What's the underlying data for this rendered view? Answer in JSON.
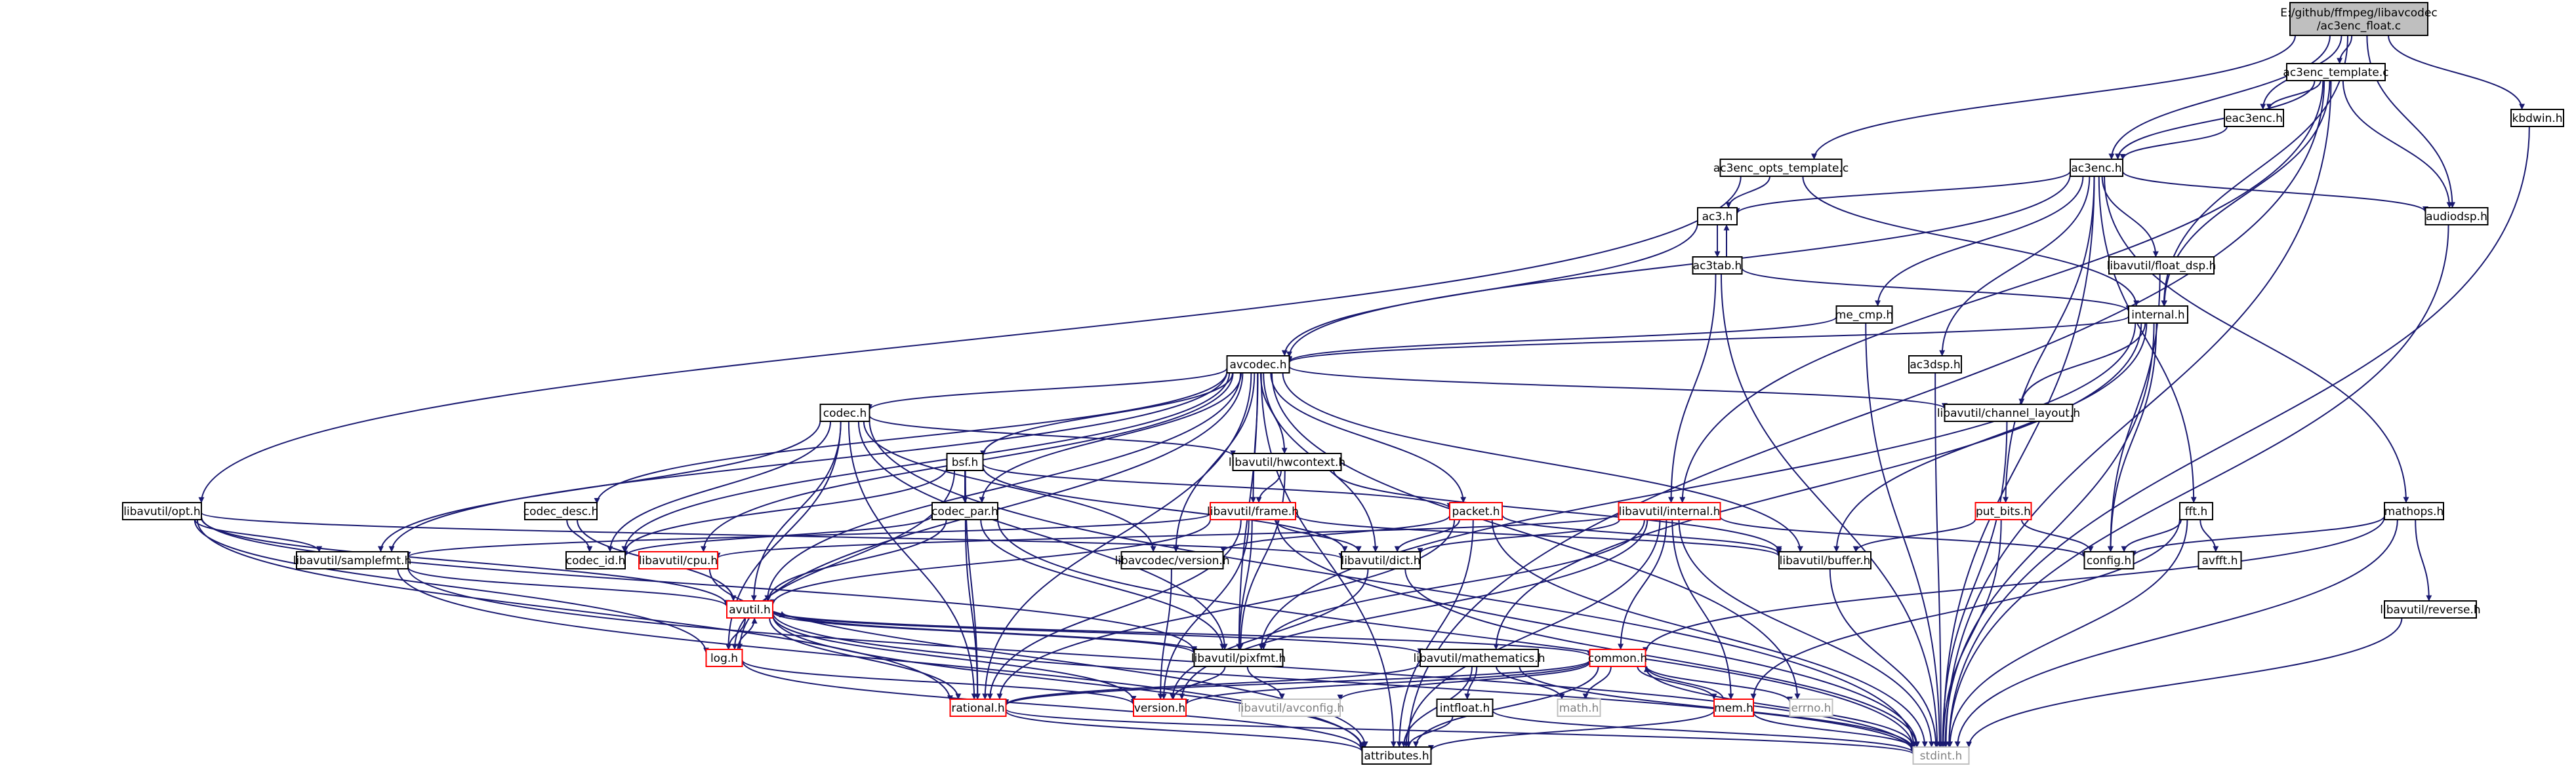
{
  "nodes": [
    {
      "id": "root",
      "label": [
        "E:/github/ffmpeg/libavcodec",
        "/ac3enc_float.c"
      ],
      "kind": "root"
    },
    {
      "id": "ac3enc_template.c",
      "label": [
        "ac3enc_template.c"
      ],
      "kind": "normal"
    },
    {
      "id": "eac3enc.h",
      "label": [
        "eac3enc.h"
      ],
      "kind": "normal"
    },
    {
      "id": "kbdwin.h",
      "label": [
        "kbdwin.h"
      ],
      "kind": "normal"
    },
    {
      "id": "ac3enc_opts_template.c",
      "label": [
        "ac3enc_opts_template.c"
      ],
      "kind": "normal"
    },
    {
      "id": "ac3enc.h",
      "label": [
        "ac3enc.h"
      ],
      "kind": "normal"
    },
    {
      "id": "audiodsp.h",
      "label": [
        "audiodsp.h"
      ],
      "kind": "normal"
    },
    {
      "id": "ac3.h",
      "label": [
        "ac3.h"
      ],
      "kind": "normal"
    },
    {
      "id": "ac3tab.h",
      "label": [
        "ac3tab.h"
      ],
      "kind": "normal"
    },
    {
      "id": "libavutil/float_dsp.h",
      "label": [
        "libavutil/float_dsp.h"
      ],
      "kind": "normal"
    },
    {
      "id": "me_cmp.h",
      "label": [
        "me_cmp.h"
      ],
      "kind": "normal"
    },
    {
      "id": "internal.h",
      "label": [
        "internal.h"
      ],
      "kind": "normal"
    },
    {
      "id": "avcodec.h",
      "label": [
        "avcodec.h"
      ],
      "kind": "normal"
    },
    {
      "id": "ac3dsp.h",
      "label": [
        "ac3dsp.h"
      ],
      "kind": "normal"
    },
    {
      "id": "codec.h",
      "label": [
        "codec.h"
      ],
      "kind": "normal"
    },
    {
      "id": "libavutil/channel_layout.h",
      "label": [
        "libavutil/channel_layout.h"
      ],
      "kind": "normal"
    },
    {
      "id": "bsf.h",
      "label": [
        "bsf.h"
      ],
      "kind": "normal"
    },
    {
      "id": "libavutil/hwcontext.h",
      "label": [
        "libavutil/hwcontext.h"
      ],
      "kind": "normal"
    },
    {
      "id": "libavutil/opt.h",
      "label": [
        "libavutil/opt.h"
      ],
      "kind": "normal"
    },
    {
      "id": "codec_desc.h",
      "label": [
        "codec_desc.h"
      ],
      "kind": "normal"
    },
    {
      "id": "codec_par.h",
      "label": [
        "codec_par.h"
      ],
      "kind": "normal"
    },
    {
      "id": "libavutil/frame.h",
      "label": [
        "libavutil/frame.h"
      ],
      "kind": "red"
    },
    {
      "id": "packet.h",
      "label": [
        "packet.h"
      ],
      "kind": "red"
    },
    {
      "id": "libavutil/internal.h",
      "label": [
        "libavutil/internal.h"
      ],
      "kind": "red"
    },
    {
      "id": "put_bits.h",
      "label": [
        "put_bits.h"
      ],
      "kind": "red"
    },
    {
      "id": "fft.h",
      "label": [
        "fft.h"
      ],
      "kind": "normal"
    },
    {
      "id": "mathops.h",
      "label": [
        "mathops.h"
      ],
      "kind": "normal"
    },
    {
      "id": "libavutil/samplefmt.h",
      "label": [
        "libavutil/samplefmt.h"
      ],
      "kind": "normal"
    },
    {
      "id": "codec_id.h",
      "label": [
        "codec_id.h"
      ],
      "kind": "normal"
    },
    {
      "id": "libavutil/cpu.h",
      "label": [
        "libavutil/cpu.h"
      ],
      "kind": "red"
    },
    {
      "id": "libavcodec/version.h",
      "label": [
        "libavcodec/version.h"
      ],
      "kind": "normal"
    },
    {
      "id": "libavutil/dict.h",
      "label": [
        "libavutil/dict.h"
      ],
      "kind": "normal"
    },
    {
      "id": "libavutil/buffer.h",
      "label": [
        "libavutil/buffer.h"
      ],
      "kind": "normal"
    },
    {
      "id": "config.h",
      "label": [
        "config.h"
      ],
      "kind": "normal"
    },
    {
      "id": "avfft.h",
      "label": [
        "avfft.h"
      ],
      "kind": "normal"
    },
    {
      "id": "avutil.h",
      "label": [
        "avutil.h"
      ],
      "kind": "red"
    },
    {
      "id": "libavutil/reverse.h",
      "label": [
        "libavutil/reverse.h"
      ],
      "kind": "normal"
    },
    {
      "id": "log.h",
      "label": [
        "log.h"
      ],
      "kind": "red"
    },
    {
      "id": "libavutil/pixfmt.h",
      "label": [
        "libavutil/pixfmt.h"
      ],
      "kind": "normal"
    },
    {
      "id": "libavutil/mathematics.h",
      "label": [
        "libavutil/mathematics.h"
      ],
      "kind": "normal"
    },
    {
      "id": "common.h",
      "label": [
        "common.h"
      ],
      "kind": "red"
    },
    {
      "id": "rational.h",
      "label": [
        "rational.h"
      ],
      "kind": "red"
    },
    {
      "id": "version.h",
      "label": [
        "version.h"
      ],
      "kind": "red"
    },
    {
      "id": "libavutil/avconfig.h",
      "label": [
        "libavutil/avconfig.h"
      ],
      "kind": "gray"
    },
    {
      "id": "intfloat.h",
      "label": [
        "intfloat.h"
      ],
      "kind": "normal"
    },
    {
      "id": "math.h",
      "label": [
        "math.h"
      ],
      "kind": "gray"
    },
    {
      "id": "mem.h",
      "label": [
        "mem.h"
      ],
      "kind": "red"
    },
    {
      "id": "errno.h",
      "label": [
        "errno.h"
      ],
      "kind": "gray"
    },
    {
      "id": "attributes.h",
      "label": [
        "attributes.h"
      ],
      "kind": "normal"
    },
    {
      "id": "stdint.h",
      "label": [
        "stdint.h"
      ],
      "kind": "gray"
    }
  ],
  "edges": [
    [
      "root",
      "ac3enc_template.c"
    ],
    [
      "root",
      "eac3enc.h"
    ],
    [
      "root",
      "kbdwin.h"
    ],
    [
      "root",
      "ac3enc_opts_template.c"
    ],
    [
      "root",
      "ac3enc.h"
    ],
    [
      "root",
      "audiodsp.h"
    ],
    [
      "root",
      "internal.h"
    ],
    [
      "ac3enc_template.c",
      "eac3enc.h"
    ],
    [
      "ac3enc_template.c",
      "ac3enc.h"
    ],
    [
      "ac3enc_template.c",
      "audiodsp.h"
    ],
    [
      "ac3enc_template.c",
      "internal.h"
    ],
    [
      "ac3enc_template.c",
      "libavutil/internal.h"
    ],
    [
      "ac3enc_template.c",
      "attributes.h"
    ],
    [
      "ac3enc_template.c",
      "stdint.h"
    ],
    [
      "eac3enc.h",
      "ac3enc.h"
    ],
    [
      "kbdwin.h",
      "stdint.h"
    ],
    [
      "ac3enc_opts_template.c",
      "libavutil/opt.h"
    ],
    [
      "ac3enc_opts_template.c",
      "internal.h"
    ],
    [
      "ac3enc_opts_template.c",
      "ac3.h"
    ],
    [
      "ac3enc.h",
      "ac3.h"
    ],
    [
      "ac3enc.h",
      "audiodsp.h"
    ],
    [
      "ac3enc.h",
      "libavutil/float_dsp.h"
    ],
    [
      "ac3enc.h",
      "me_cmp.h"
    ],
    [
      "ac3enc.h",
      "ac3dsp.h"
    ],
    [
      "ac3enc.h",
      "put_bits.h"
    ],
    [
      "ac3enc.h",
      "fft.h"
    ],
    [
      "ac3enc.h",
      "mathops.h"
    ],
    [
      "ac3enc.h",
      "avcodec.h"
    ],
    [
      "ac3enc.h",
      "stdint.h"
    ],
    [
      "audiodsp.h",
      "stdint.h"
    ],
    [
      "ac3.h",
      "ac3tab.h"
    ],
    [
      "ac3.h",
      "avcodec.h"
    ],
    [
      "ac3tab.h",
      "ac3.h"
    ],
    [
      "ac3tab.h",
      "internal.h"
    ],
    [
      "ac3tab.h",
      "libavutil/internal.h"
    ],
    [
      "ac3tab.h",
      "stdint.h"
    ],
    [
      "libavutil/float_dsp.h",
      "config.h"
    ],
    [
      "me_cmp.h",
      "avcodec.h"
    ],
    [
      "me_cmp.h",
      "stdint.h"
    ],
    [
      "ac3dsp.h",
      "stdint.h"
    ],
    [
      "internal.h",
      "avcodec.h"
    ],
    [
      "internal.h",
      "libavutil/channel_layout.h"
    ],
    [
      "internal.h",
      "libavutil/buffer.h"
    ],
    [
      "internal.h",
      "config.h"
    ],
    [
      "internal.h",
      "libavutil/pixfmt.h"
    ],
    [
      "internal.h",
      "libavutil/mathematics.h"
    ],
    [
      "internal.h",
      "stdint.h"
    ],
    [
      "avcodec.h",
      "codec.h"
    ],
    [
      "avcodec.h",
      "libavutil/channel_layout.h"
    ],
    [
      "avcodec.h",
      "bsf.h"
    ],
    [
      "avcodec.h",
      "libavutil/hwcontext.h"
    ],
    [
      "avcodec.h",
      "codec_desc.h"
    ],
    [
      "avcodec.h",
      "codec_par.h"
    ],
    [
      "avcodec.h",
      "libavutil/frame.h"
    ],
    [
      "avcodec.h",
      "packet.h"
    ],
    [
      "avcodec.h",
      "libavutil/samplefmt.h"
    ],
    [
      "avcodec.h",
      "codec_id.h"
    ],
    [
      "avcodec.h",
      "libavutil/cpu.h"
    ],
    [
      "avcodec.h",
      "libavcodec/version.h"
    ],
    [
      "avcodec.h",
      "libavutil/dict.h"
    ],
    [
      "avcodec.h",
      "libavutil/buffer.h"
    ],
    [
      "avcodec.h",
      "avutil.h"
    ],
    [
      "avcodec.h",
      "log.h"
    ],
    [
      "avcodec.h",
      "libavutil/pixfmt.h"
    ],
    [
      "avcodec.h",
      "rational.h"
    ],
    [
      "avcodec.h",
      "errno.h"
    ],
    [
      "avcodec.h",
      "attributes.h"
    ],
    [
      "codec.h",
      "libavutil/hwcontext.h"
    ],
    [
      "codec.h",
      "libavutil/samplefmt.h"
    ],
    [
      "codec.h",
      "codec_id.h"
    ],
    [
      "codec.h",
      "libavcodec/version.h"
    ],
    [
      "codec.h",
      "avutil.h"
    ],
    [
      "codec.h",
      "log.h"
    ],
    [
      "codec.h",
      "libavutil/pixfmt.h"
    ],
    [
      "codec.h",
      "rational.h"
    ],
    [
      "codec.h",
      "stdint.h"
    ],
    [
      "libavutil/channel_layout.h",
      "stdint.h"
    ],
    [
      "bsf.h",
      "codec_par.h"
    ],
    [
      "bsf.h",
      "packet.h"
    ],
    [
      "bsf.h",
      "codec_id.h"
    ],
    [
      "bsf.h",
      "libavutil/dict.h"
    ],
    [
      "bsf.h",
      "log.h"
    ],
    [
      "bsf.h",
      "rational.h"
    ],
    [
      "libavutil/hwcontext.h",
      "libavutil/frame.h"
    ],
    [
      "libavutil/hwcontext.h",
      "libavutil/buffer.h"
    ],
    [
      "libavutil/hwcontext.h",
      "libavutil/pixfmt.h"
    ],
    [
      "libavutil/opt.h",
      "libavutil/samplefmt.h"
    ],
    [
      "libavutil/opt.h",
      "libavutil/dict.h"
    ],
    [
      "libavutil/opt.h",
      "avutil.h"
    ],
    [
      "libavutil/opt.h",
      "log.h"
    ],
    [
      "libavutil/opt.h",
      "libavutil/pixfmt.h"
    ],
    [
      "libavutil/opt.h",
      "rational.h"
    ],
    [
      "codec_desc.h",
      "codec_id.h"
    ],
    [
      "codec_desc.h",
      "avutil.h"
    ],
    [
      "codec_par.h",
      "codec_id.h"
    ],
    [
      "codec_par.h",
      "avutil.h"
    ],
    [
      "codec_par.h",
      "libavutil/pixfmt.h"
    ],
    [
      "codec_par.h",
      "rational.h"
    ],
    [
      "codec_par.h",
      "stdint.h"
    ],
    [
      "libavutil/frame.h",
      "libavutil/samplefmt.h"
    ],
    [
      "libavutil/frame.h",
      "libavutil/dict.h"
    ],
    [
      "libavutil/frame.h",
      "libavutil/buffer.h"
    ],
    [
      "libavutil/frame.h",
      "avutil.h"
    ],
    [
      "libavutil/frame.h",
      "libavutil/pixfmt.h"
    ],
    [
      "libavutil/frame.h",
      "rational.h"
    ],
    [
      "libavutil/frame.h",
      "version.h"
    ],
    [
      "libavutil/frame.h",
      "stdint.h"
    ],
    [
      "packet.h",
      "libavcodec/version.h"
    ],
    [
      "packet.h",
      "libavutil/dict.h"
    ],
    [
      "packet.h",
      "libavutil/buffer.h"
    ],
    [
      "packet.h",
      "rational.h"
    ],
    [
      "packet.h",
      "attributes.h"
    ],
    [
      "packet.h",
      "stdint.h"
    ],
    [
      "libavutil/internal.h",
      "libavutil/cpu.h"
    ],
    [
      "libavutil/internal.h",
      "libavutil/dict.h"
    ],
    [
      "libavutil/internal.h",
      "config.h"
    ],
    [
      "libavutil/internal.h",
      "libavutil/pixfmt.h"
    ],
    [
      "libavutil/internal.h",
      "common.h"
    ],
    [
      "libavutil/internal.h",
      "mem.h"
    ],
    [
      "libavutil/internal.h",
      "version.h"
    ],
    [
      "libavutil/internal.h",
      "attributes.h"
    ],
    [
      "libavutil/internal.h",
      "stdint.h"
    ],
    [
      "put_bits.h",
      "libavutil/buffer.h"
    ],
    [
      "put_bits.h",
      "config.h"
    ],
    [
      "put_bits.h",
      "stdint.h"
    ],
    [
      "fft.h",
      "config.h"
    ],
    [
      "fft.h",
      "avfft.h"
    ],
    [
      "fft.h",
      "mem.h"
    ],
    [
      "fft.h",
      "stdint.h"
    ],
    [
      "mathops.h",
      "config.h"
    ],
    [
      "mathops.h",
      "libavutil/reverse.h"
    ],
    [
      "mathops.h",
      "common.h"
    ],
    [
      "mathops.h",
      "stdint.h"
    ],
    [
      "libavutil/samplefmt.h",
      "avutil.h"
    ],
    [
      "libavutil/samplefmt.h",
      "attributes.h"
    ],
    [
      "libavutil/samplefmt.h",
      "stdint.h"
    ],
    [
      "libavutil/cpu.h",
      "attributes.h"
    ],
    [
      "libavcodec/version.h",
      "version.h"
    ],
    [
      "libavutil/dict.h",
      "version.h"
    ],
    [
      "libavutil/dict.h",
      "stdint.h"
    ],
    [
      "libavutil/buffer.h",
      "stdint.h"
    ],
    [
      "avutil.h",
      "log.h"
    ],
    [
      "avutil.h",
      "libavutil/pixfmt.h"
    ],
    [
      "avutil.h",
      "libavutil/mathematics.h"
    ],
    [
      "avutil.h",
      "common.h"
    ],
    [
      "avutil.h",
      "rational.h"
    ],
    [
      "avutil.h",
      "version.h"
    ],
    [
      "avutil.h",
      "attributes.h"
    ],
    [
      "avutil.h",
      "stdint.h"
    ],
    [
      "libavutil/reverse.h",
      "stdint.h"
    ],
    [
      "log.h",
      "avutil.h"
    ],
    [
      "log.h",
      "attributes.h"
    ],
    [
      "log.h",
      "version.h"
    ],
    [
      "libavutil/pixfmt.h",
      "avutil.h"
    ],
    [
      "libavutil/pixfmt.h",
      "libavutil/avconfig.h"
    ],
    [
      "libavutil/pixfmt.h",
      "version.h"
    ],
    [
      "libavutil/mathematics.h",
      "rational.h"
    ],
    [
      "libavutil/mathematics.h",
      "intfloat.h"
    ],
    [
      "libavutil/mathematics.h",
      "math.h"
    ],
    [
      "libavutil/mathematics.h",
      "attributes.h"
    ],
    [
      "libavutil/mathematics.h",
      "stdint.h"
    ],
    [
      "common.h",
      "mem.h"
    ],
    [
      "common.h",
      "rational.h"
    ],
    [
      "common.h",
      "version.h"
    ],
    [
      "common.h",
      "libavutil/avconfig.h"
    ],
    [
      "common.h",
      "math.h"
    ],
    [
      "common.h",
      "errno.h"
    ],
    [
      "common.h",
      "attributes.h"
    ],
    [
      "common.h",
      "stdint.h"
    ],
    [
      "rational.h",
      "attributes.h"
    ],
    [
      "rational.h",
      "stdint.h"
    ],
    [
      "intfloat.h",
      "attributes.h"
    ],
    [
      "intfloat.h",
      "stdint.h"
    ],
    [
      "mem.h",
      "common.h"
    ],
    [
      "mem.h",
      "attributes.h"
    ],
    [
      "mem.h",
      "stdint.h"
    ]
  ],
  "colors": {
    "edge": "#191970",
    "normal_border": "#000000",
    "red_border": "#ff0000",
    "gray_border": "#bfbfbf",
    "root_fill": "#bfbfbf",
    "text": "#000000",
    "gray_text": "#808080"
  }
}
